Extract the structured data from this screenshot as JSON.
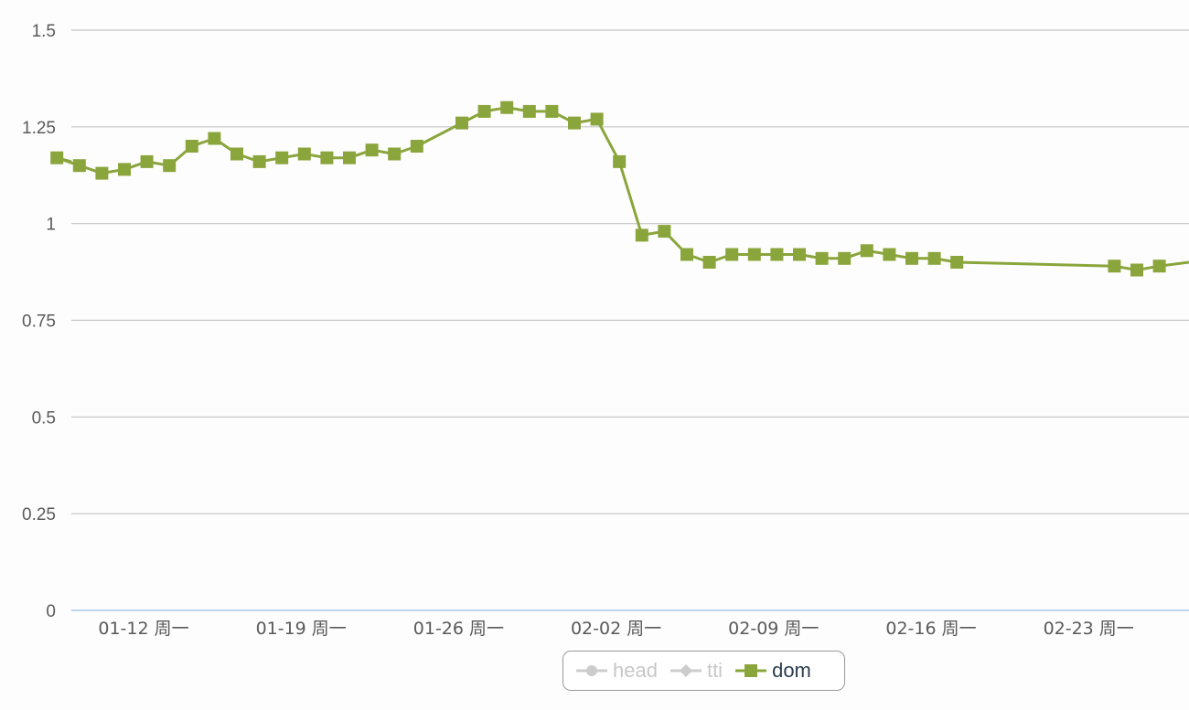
{
  "colors": {
    "dom": "#8aa53c",
    "inactive": "#cccccc",
    "grid": "#c4c4c4",
    "axis": "#aac6e6"
  },
  "legend": {
    "items": [
      {
        "label": "head",
        "marker": "circle",
        "active": false
      },
      {
        "label": "tti",
        "marker": "diamond",
        "active": false
      },
      {
        "label": "dom",
        "marker": "square",
        "active": true
      }
    ]
  },
  "chart_data": {
    "type": "line",
    "title": "",
    "xlabel": "",
    "ylabel": "",
    "ylim": [
      0,
      1.5
    ],
    "yticks": [
      0,
      0.25,
      0.5,
      0.75,
      1,
      1.25,
      1.5
    ],
    "ytick_labels": [
      "0",
      "0.25",
      "0.5",
      "0.75",
      "1",
      "1.25",
      "1.5"
    ],
    "xlim": [
      "2015-01-08",
      "2015-03-02"
    ],
    "xtick_dates": [
      "2015-01-12",
      "2015-01-19",
      "2015-01-26",
      "2015-02-02",
      "2015-02-09",
      "2015-02-16",
      "2015-02-23"
    ],
    "xtick_labels": [
      "01-12 周一",
      "01-19 周一",
      "01-26 周一",
      "02-02 周一",
      "02-09 周一",
      "02-16 周一",
      "02-23 周一"
    ],
    "grid": true,
    "legend_position": "bottom-center",
    "series": [
      {
        "name": "dom",
        "marker": "square",
        "x": [
          "2015-01-09",
          "2015-01-10",
          "2015-01-11",
          "2015-01-12",
          "2015-01-13",
          "2015-01-14",
          "2015-01-15",
          "2015-01-16",
          "2015-01-17",
          "2015-01-18",
          "2015-01-19",
          "2015-01-20",
          "2015-01-21",
          "2015-01-22",
          "2015-01-23",
          "2015-01-24",
          "2015-01-25",
          "2015-01-27",
          "2015-01-28",
          "2015-01-29",
          "2015-01-30",
          "2015-01-31",
          "2015-02-01",
          "2015-02-02",
          "2015-02-03",
          "2015-02-04",
          "2015-02-05",
          "2015-02-06",
          "2015-02-07",
          "2015-02-08",
          "2015-02-09",
          "2015-02-10",
          "2015-02-11",
          "2015-02-12",
          "2015-02-13",
          "2015-02-14",
          "2015-02-15",
          "2015-02-16",
          "2015-02-17",
          "2015-02-18",
          "2015-02-25",
          "2015-02-26",
          "2015-02-27"
        ],
        "values": [
          1.17,
          1.15,
          1.13,
          1.14,
          1.16,
          1.15,
          1.2,
          1.22,
          1.18,
          1.16,
          1.17,
          1.18,
          1.17,
          1.17,
          1.19,
          1.18,
          1.2,
          1.26,
          1.29,
          1.3,
          1.29,
          1.29,
          1.26,
          1.27,
          1.16,
          0.97,
          0.98,
          0.92,
          0.9,
          0.92,
          0.92,
          0.92,
          0.92,
          0.91,
          0.91,
          0.93,
          0.92,
          0.91,
          0.91,
          0.9,
          0.89,
          0.88,
          0.89
        ],
        "edge_values": {
          "left": 1.16,
          "right": 0.9
        }
      }
    ]
  }
}
